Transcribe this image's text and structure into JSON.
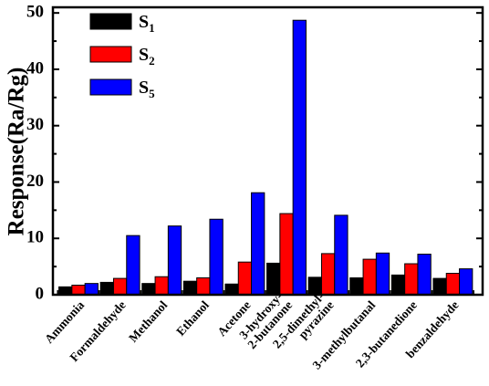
{
  "chart_data": {
    "type": "bar",
    "title": "",
    "xlabel": "",
    "ylabel": "Response(Ra/Rg)",
    "ylim": [
      0,
      51
    ],
    "yticks": [
      0,
      10,
      20,
      30,
      40,
      50
    ],
    "grid": false,
    "legend_position": "top-left",
    "highlight_color": "#1c1ce6",
    "categories": [
      {
        "lines": [
          "Ammonia"
        ],
        "highlight": false
      },
      {
        "lines": [
          "Formaldehyde"
        ],
        "highlight": false
      },
      {
        "lines": [
          "Methanol"
        ],
        "highlight": false
      },
      {
        "lines": [
          "Ethanol"
        ],
        "highlight": false
      },
      {
        "lines": [
          "Acetone"
        ],
        "highlight": false
      },
      {
        "lines": [
          "3-hydroxy-",
          "2-butanone"
        ],
        "highlight": true
      },
      {
        "lines": [
          "2,5-dimethyl-",
          "pyrazine"
        ],
        "highlight": false
      },
      {
        "lines": [
          "3-methylbutanal"
        ],
        "highlight": false
      },
      {
        "lines": [
          "2,3-butanedione"
        ],
        "highlight": false
      },
      {
        "lines": [
          "benzaldehyde"
        ],
        "highlight": false
      }
    ],
    "series": [
      {
        "name": "S",
        "subscript": "1",
        "color": "#000000",
        "values": [
          1.4,
          2.2,
          2.0,
          2.4,
          1.9,
          5.6,
          3.1,
          3.0,
          3.5,
          2.9
        ]
      },
      {
        "name": "S",
        "subscript": "2",
        "color": "#ff0000",
        "values": [
          1.7,
          2.9,
          3.2,
          3.0,
          5.8,
          14.4,
          7.3,
          6.3,
          5.5,
          3.8
        ]
      },
      {
        "name": "S",
        "subscript": "5",
        "color": "#0000ff",
        "values": [
          2.0,
          10.5,
          12.2,
          13.4,
          18.1,
          48.7,
          14.1,
          7.4,
          7.2,
          4.6
        ]
      }
    ]
  }
}
